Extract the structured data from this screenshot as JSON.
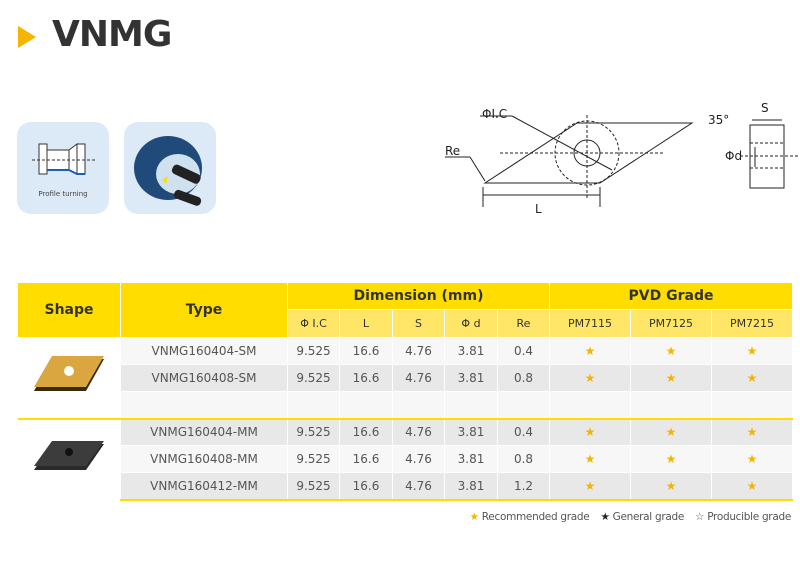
{
  "title": "VNMG",
  "application": {
    "label": "Profile turning"
  },
  "diagram": {
    "ic": "ΦI.C",
    "re": "Re",
    "l": "L",
    "angle": "35°",
    "s": "S",
    "d": "Φd"
  },
  "table": {
    "headers": {
      "shape": "Shape",
      "type": "Type",
      "dimension": "Dimension (mm)",
      "pvd": "PVD Grade"
    },
    "subheaders": [
      "Φ I.C",
      "L",
      "S",
      "Φ d",
      "Re",
      "PM7115",
      "PM7125",
      "PM7215"
    ],
    "groups": [
      {
        "insert_color": "gold",
        "rows": [
          {
            "type": "VNMG160404-SM",
            "ic": "9.525",
            "l": "16.6",
            "s": "4.76",
            "d": "3.81",
            "re": "0.4",
            "grades": [
              "★",
              "★",
              "★"
            ]
          },
          {
            "type": "VNMG160408-SM",
            "ic": "9.525",
            "l": "16.6",
            "s": "4.76",
            "d": "3.81",
            "re": "0.8",
            "grades": [
              "★",
              "★",
              "★"
            ]
          }
        ]
      },
      {
        "insert_color": "black",
        "rows": [
          {
            "type": "VNMG160404-MM",
            "ic": "9.525",
            "l": "16.6",
            "s": "4.76",
            "d": "3.81",
            "re": "0.4",
            "grades": [
              "★",
              "★",
              "★"
            ]
          },
          {
            "type": "VNMG160408-MM",
            "ic": "9.525",
            "l": "16.6",
            "s": "4.76",
            "d": "3.81",
            "re": "0.8",
            "grades": [
              "★",
              "★",
              "★"
            ]
          },
          {
            "type": "VNMG160412-MM",
            "ic": "9.525",
            "l": "16.6",
            "s": "4.76",
            "d": "3.81",
            "re": "1.2",
            "grades": [
              "★",
              "★",
              "★"
            ]
          }
        ]
      }
    ]
  },
  "legend": {
    "recommended": "★ Recommended grade",
    "general": "★ General grade",
    "producible": "☆ Producible grade"
  },
  "colors": {
    "accent": "#ffdd00",
    "star": "#f5b400"
  }
}
